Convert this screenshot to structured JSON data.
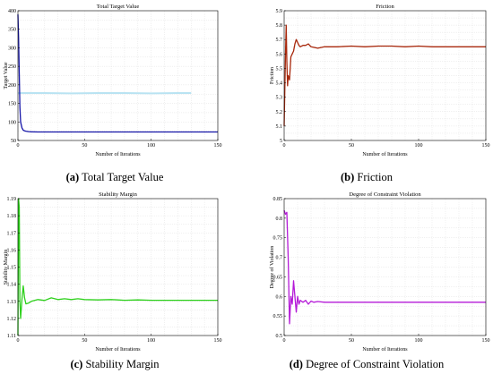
{
  "figure": {
    "captions": [
      {
        "label": "(a)",
        "text": "Total Target Value"
      },
      {
        "label": "(b)",
        "text": "Friction"
      },
      {
        "label": "(c)",
        "text": "Stability Margin"
      },
      {
        "label": "(d)",
        "text": "Degree of Constraint Violation"
      }
    ]
  },
  "chart_data": [
    {
      "type": "line",
      "title": "Total Target Value",
      "xlabel": "Number of Iterations",
      "ylabel": "Target Value",
      "xlim": [
        0,
        150
      ],
      "ylim": [
        50,
        400
      ],
      "xticks": [
        "0",
        "50",
        "100",
        "150"
      ],
      "yticks": [
        "50",
        "100",
        "150",
        "200",
        "250",
        "300",
        "350",
        "400"
      ],
      "grid": true,
      "color": "#1515a8",
      "series": [
        {
          "x": [
            0,
            0.5,
            1,
            1.5,
            2,
            3,
            4,
            5,
            6,
            8,
            10,
            15,
            20,
            30,
            50,
            100,
            150
          ],
          "y": [
            390,
            330,
            230,
            140,
            100,
            84,
            78,
            76,
            75,
            74,
            73.5,
            73,
            73,
            73,
            73,
            73,
            73
          ]
        }
      ],
      "overlay": {
        "color": "#b9e3f2",
        "x": [
          0,
          10,
          20,
          40,
          60,
          80,
          100,
          120,
          130
        ],
        "y": [
          178,
          178,
          178,
          177,
          178,
          178,
          177,
          178,
          178
        ]
      }
    },
    {
      "type": "line",
      "title": "Friction",
      "xlabel": "Number of Iterations",
      "ylabel": "Friction",
      "xlim": [
        0,
        150
      ],
      "ylim": [
        5,
        5.9
      ],
      "xticks": [
        "0",
        "50",
        "100",
        "150"
      ],
      "yticks": [
        "5",
        "5.1",
        "5.2",
        "5.3",
        "5.4",
        "5.5",
        "5.6",
        "5.7",
        "5.8",
        "5.9"
      ],
      "grid": true,
      "color": "#a8280c",
      "series": [
        {
          "x": [
            0,
            1,
            1.5,
            2,
            2.5,
            3,
            4,
            5,
            6,
            7,
            8,
            9,
            10,
            11,
            12,
            14,
            16,
            18,
            20,
            25,
            30,
            40,
            50,
            60,
            70,
            80,
            90,
            100,
            110,
            120,
            130,
            140,
            150
          ],
          "y": [
            5.1,
            5.6,
            5.8,
            5.55,
            5.38,
            5.45,
            5.42,
            5.58,
            5.6,
            5.62,
            5.67,
            5.7,
            5.68,
            5.66,
            5.65,
            5.66,
            5.66,
            5.67,
            5.65,
            5.64,
            5.65,
            5.65,
            5.655,
            5.65,
            5.655,
            5.655,
            5.65,
            5.655,
            5.65,
            5.65,
            5.65,
            5.65,
            5.65
          ]
        }
      ]
    },
    {
      "type": "line",
      "title": "Stability Margin",
      "xlabel": "Number of Iterations",
      "ylabel": "Stability Margin",
      "xlim": [
        0,
        150
      ],
      "ylim": [
        1.11,
        1.19
      ],
      "xticks": [
        "0",
        "50",
        "100",
        "150"
      ],
      "yticks": [
        "1.11",
        "1.12",
        "1.13",
        "1.14",
        "1.15",
        "1.16",
        "1.17",
        "1.18",
        "1.19"
      ],
      "grid": true,
      "color": "#2cd01a",
      "series": [
        {
          "x": [
            0,
            0.5,
            1,
            1.5,
            2,
            3,
            4,
            5,
            6,
            8,
            10,
            15,
            20,
            25,
            30,
            35,
            40,
            45,
            50,
            60,
            70,
            80,
            90,
            100,
            110,
            120,
            130,
            140,
            150
          ],
          "y": [
            1.11,
            1.19,
            1.185,
            1.13,
            1.12,
            1.131,
            1.139,
            1.132,
            1.1285,
            1.129,
            1.13,
            1.131,
            1.1305,
            1.132,
            1.131,
            1.1315,
            1.131,
            1.1315,
            1.131,
            1.1308,
            1.131,
            1.1306,
            1.1308,
            1.1306,
            1.1306,
            1.1306,
            1.1306,
            1.1306,
            1.1306
          ]
        }
      ]
    },
    {
      "type": "line",
      "title": "Degree of Constraint Violation",
      "xlabel": "Number of Iterations",
      "ylabel": "Degree of Violation",
      "xlim": [
        0,
        150
      ],
      "ylim": [
        0.5,
        0.85
      ],
      "xticks": [
        "0",
        "50",
        "100",
        "150"
      ],
      "yticks": [
        "0.5",
        "0.55",
        "0.6",
        "0.65",
        "0.7",
        "0.75",
        "0.8",
        "0.85"
      ],
      "grid": true,
      "color": "#b51ad8",
      "series": [
        {
          "x": [
            0,
            1,
            2,
            3,
            4,
            5,
            6,
            7,
            8,
            9,
            10,
            11,
            12,
            14,
            16,
            18,
            20,
            22,
            25,
            30,
            40,
            50,
            60,
            70,
            80,
            90,
            100,
            120,
            150
          ],
          "y": [
            0.82,
            0.81,
            0.815,
            0.7,
            0.53,
            0.6,
            0.58,
            0.64,
            0.6,
            0.56,
            0.6,
            0.58,
            0.59,
            0.585,
            0.59,
            0.58,
            0.588,
            0.585,
            0.587,
            0.585,
            0.585,
            0.585,
            0.585,
            0.585,
            0.585,
            0.585,
            0.585,
            0.585,
            0.585
          ]
        }
      ]
    }
  ]
}
